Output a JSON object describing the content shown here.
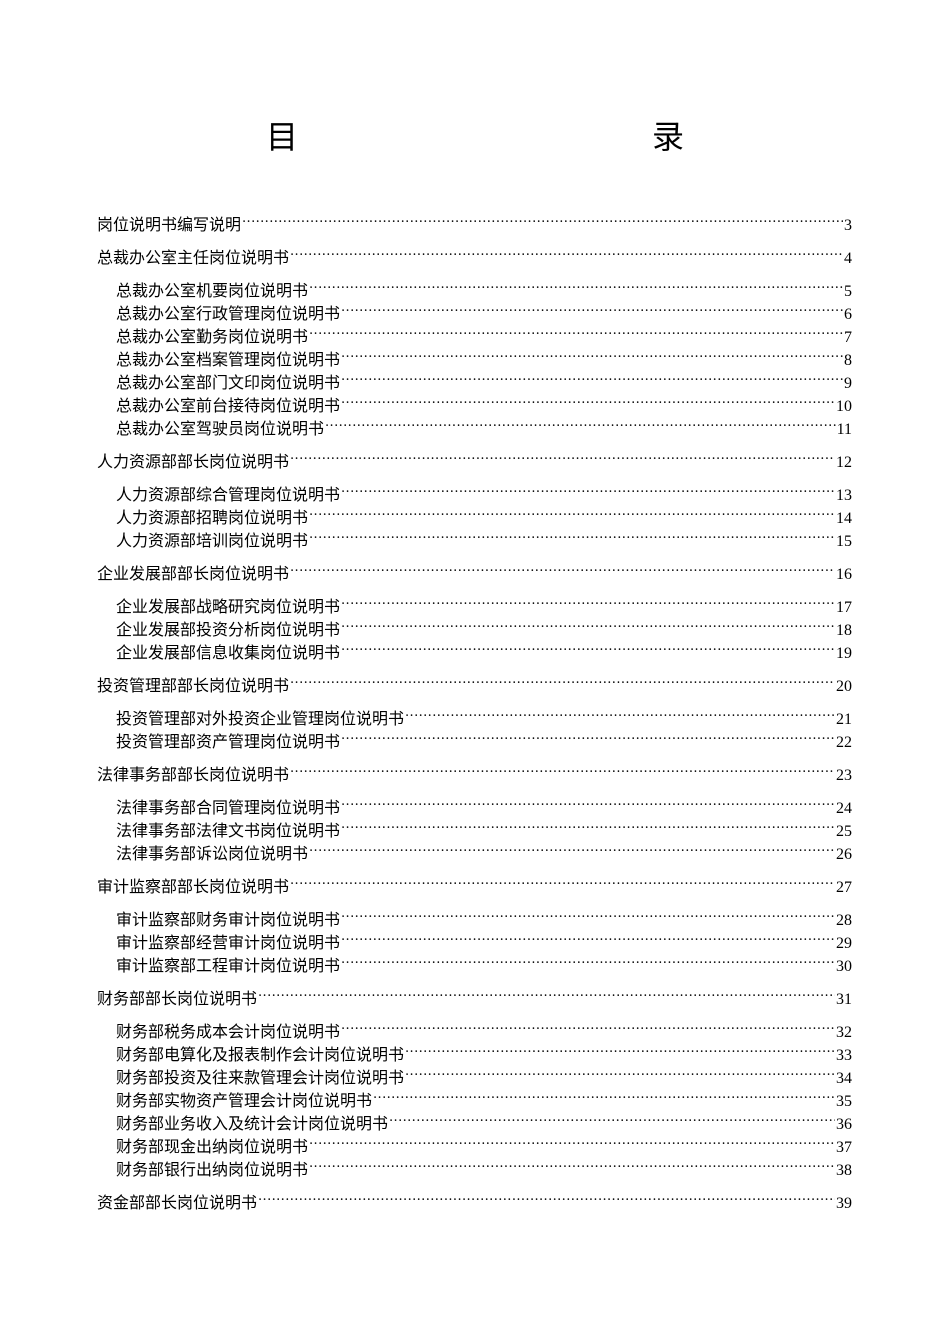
{
  "title": [
    "目",
    "录"
  ],
  "entries": [
    {
      "level": 1,
      "text": "岗位说明书编写说明",
      "page": "3"
    },
    {
      "level": 1,
      "text": "总裁办公室主任岗位说明书",
      "page": "4"
    },
    {
      "level": 2,
      "text": "总裁办公室机要岗位说明书",
      "page": "5"
    },
    {
      "level": 2,
      "text": "总裁办公室行政管理岗位说明书",
      "page": "6"
    },
    {
      "level": 2,
      "text": "总裁办公室勤务岗位说明书",
      "page": "7"
    },
    {
      "level": 2,
      "text": "总裁办公室档案管理岗位说明书",
      "page": "8"
    },
    {
      "level": 2,
      "text": "总裁办公室部门文印岗位说明书",
      "page": "9"
    },
    {
      "level": 2,
      "text": "总裁办公室前台接待岗位说明书",
      "page": "10"
    },
    {
      "level": 2,
      "text": "总裁办公室驾驶员岗位说明书",
      "page": "11"
    },
    {
      "level": 1,
      "text": "人力资源部部长岗位说明书",
      "page": "12"
    },
    {
      "level": 2,
      "text": "人力资源部综合管理岗位说明书",
      "page": "13"
    },
    {
      "level": 2,
      "text": "人力资源部招聘岗位说明书",
      "page": "14"
    },
    {
      "level": 2,
      "text": "人力资源部培训岗位说明书",
      "page": "15"
    },
    {
      "level": 1,
      "text": "企业发展部部长岗位说明书",
      "page": "16"
    },
    {
      "level": 2,
      "text": "企业发展部战略研究岗位说明书",
      "page": "17"
    },
    {
      "level": 2,
      "text": "企业发展部投资分析岗位说明书",
      "page": "18"
    },
    {
      "level": 2,
      "text": "企业发展部信息收集岗位说明书",
      "page": "19"
    },
    {
      "level": 1,
      "text": "投资管理部部长岗位说明书",
      "page": "20"
    },
    {
      "level": 2,
      "text": "投资管理部对外投资企业管理岗位说明书",
      "page": "21"
    },
    {
      "level": 2,
      "text": "投资管理部资产管理岗位说明书",
      "page": "22"
    },
    {
      "level": 1,
      "text": "法律事务部部长岗位说明书",
      "page": "23"
    },
    {
      "level": 2,
      "text": "法律事务部合同管理岗位说明书",
      "page": "24"
    },
    {
      "level": 2,
      "text": "法律事务部法律文书岗位说明书",
      "page": "25"
    },
    {
      "level": 2,
      "text": "法律事务部诉讼岗位说明书",
      "page": "26"
    },
    {
      "level": 1,
      "text": "审计监察部部长岗位说明书",
      "page": "27"
    },
    {
      "level": 2,
      "text": "审计监察部财务审计岗位说明书",
      "page": "28"
    },
    {
      "level": 2,
      "text": "审计监察部经营审计岗位说明书",
      "page": "29"
    },
    {
      "level": 2,
      "text": "审计监察部工程审计岗位说明书",
      "page": "30"
    },
    {
      "level": 1,
      "text": "财务部部长岗位说明书",
      "page": "31"
    },
    {
      "level": 2,
      "text": "财务部税务成本会计岗位说明书",
      "page": "32"
    },
    {
      "level": 2,
      "text": "财务部电算化及报表制作会计岗位说明书",
      "page": "33"
    },
    {
      "level": 2,
      "text": "财务部投资及往来款管理会计岗位说明书",
      "page": "34"
    },
    {
      "level": 2,
      "text": "财务部实物资产管理会计岗位说明书",
      "page": "35"
    },
    {
      "level": 2,
      "text": "财务部业务收入及统计会计岗位说明书",
      "page": "36"
    },
    {
      "level": 2,
      "text": "财务部现金出纳岗位说明书",
      "page": "37"
    },
    {
      "level": 2,
      "text": "财务部银行出纳岗位说明书",
      "page": "38"
    },
    {
      "level": 1,
      "text": "资金部部长岗位说明书",
      "page": "39"
    }
  ]
}
